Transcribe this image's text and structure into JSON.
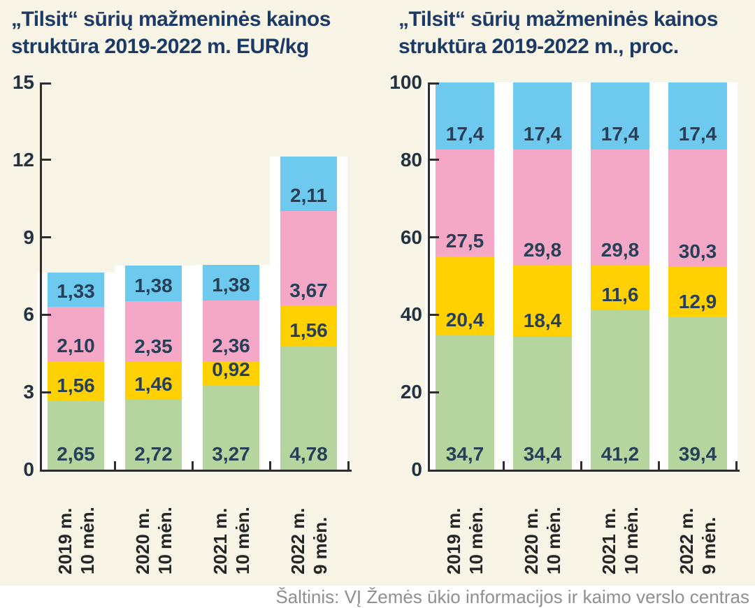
{
  "colors": {
    "background": "#F8F5E7",
    "axis": "#2e2e2e",
    "title_text": "#1C3A66",
    "value_label_text": "#274058",
    "tick_label_text": "#233240",
    "source_text": "#8F8F8F",
    "segment_green": "#B5D49E",
    "segment_yellow": "#FFD103",
    "segment_pink": "#F5A8C5",
    "segment_blue": "#6EC9EE"
  },
  "chart_data": [
    {
      "type": "bar",
      "subtype": "stacked",
      "title": "„Tilsit“ sūrių mažmeninės kainos struktūra 2019-2022 m. EUR/kg",
      "ylim": [
        0,
        15
      ],
      "y_ticks": [
        0,
        3,
        6,
        9,
        12,
        15
      ],
      "grid": false,
      "legend": "none",
      "categories": [
        [
          "2019 m.",
          "10 mėn."
        ],
        [
          "2020 m.",
          "10 mėn."
        ],
        [
          "2021 m.",
          "10 mėn."
        ],
        [
          "2022 m.",
          "9 mėn."
        ]
      ],
      "series": [
        {
          "name": "green-segment",
          "color": "#B5D49E",
          "values": [
            2.65,
            2.72,
            3.27,
            4.78
          ],
          "display": [
            "2,65",
            "2,72",
            "3,27",
            "4,78"
          ]
        },
        {
          "name": "yellow-segment",
          "color": "#FFD103",
          "values": [
            1.56,
            1.46,
            0.92,
            1.56
          ],
          "display": [
            "1,56",
            "1,46",
            "0,92",
            "1,56"
          ]
        },
        {
          "name": "pink-segment",
          "color": "#F5A8C5",
          "values": [
            2.1,
            2.35,
            2.36,
            3.67
          ],
          "display": [
            "2,10",
            "2,35",
            "2,36",
            "3,67"
          ]
        },
        {
          "name": "blue-segment",
          "color": "#6EC9EE",
          "values": [
            1.33,
            1.38,
            1.38,
            2.11
          ],
          "display": [
            "1,33",
            "1,38",
            "1,38",
            "2,11"
          ]
        }
      ]
    },
    {
      "type": "bar",
      "subtype": "stacked",
      "title": "„Tilsit“ sūrių mažmeninės kainos struktūra 2019-2022 m., proc.",
      "ylim": [
        0,
        100
      ],
      "y_ticks": [
        0,
        20,
        40,
        60,
        80,
        100
      ],
      "grid": false,
      "legend": "none",
      "categories": [
        [
          "2019 m.",
          "10 mėn."
        ],
        [
          "2020 m.",
          "10 mėn."
        ],
        [
          "2021 m.",
          "10 mėn."
        ],
        [
          "2022 m.",
          "9 mėn."
        ]
      ],
      "series": [
        {
          "name": "green-segment",
          "color": "#B5D49E",
          "values": [
            34.7,
            34.4,
            41.2,
            39.4
          ],
          "display": [
            "34,7",
            "34,4",
            "41,2",
            "39,4"
          ]
        },
        {
          "name": "yellow-segment",
          "color": "#FFD103",
          "values": [
            20.4,
            18.4,
            11.6,
            12.9
          ],
          "display": [
            "20,4",
            "18,4",
            "11,6",
            "12,9"
          ]
        },
        {
          "name": "pink-segment",
          "color": "#F5A8C5",
          "values": [
            27.5,
            29.8,
            29.8,
            30.3
          ],
          "display": [
            "27,5",
            "29,8",
            "29,8",
            "30,3"
          ]
        },
        {
          "name": "blue-segment",
          "color": "#6EC9EE",
          "values": [
            17.4,
            17.4,
            17.4,
            17.4
          ],
          "display": [
            "17,4",
            "17,4",
            "17,4",
            "17,4"
          ]
        }
      ]
    }
  ],
  "source": {
    "text": "Šaltinis: VĮ Žemės ūkio informacijos ir kaimo verslo centras"
  }
}
